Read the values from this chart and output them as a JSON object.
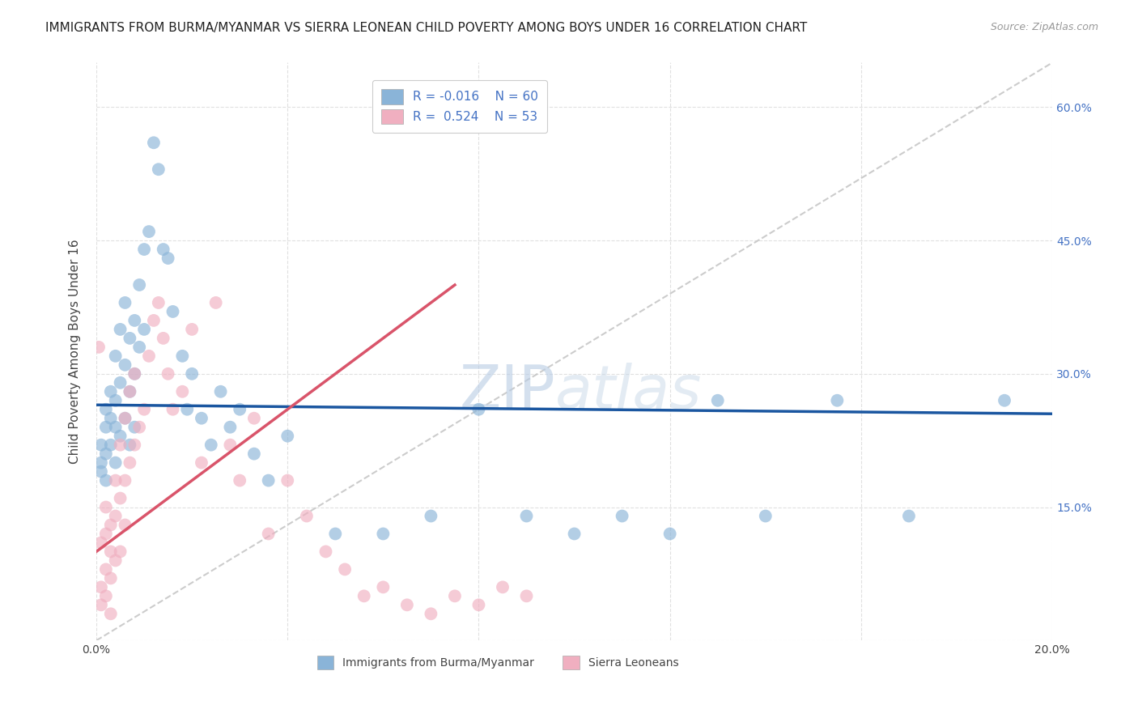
{
  "title": "IMMIGRANTS FROM BURMA/MYANMAR VS SIERRA LEONEAN CHILD POVERTY AMONG BOYS UNDER 16 CORRELATION CHART",
  "source": "Source: ZipAtlas.com",
  "ylabel": "Child Poverty Among Boys Under 16",
  "x_min": 0.0,
  "x_max": 0.2,
  "y_min": 0.0,
  "y_max": 0.65,
  "x_ticks": [
    0.0,
    0.04,
    0.08,
    0.12,
    0.16,
    0.2
  ],
  "y_ticks": [
    0.0,
    0.15,
    0.3,
    0.45,
    0.6
  ],
  "y_tick_labels_right": [
    "",
    "15.0%",
    "30.0%",
    "45.0%",
    "60.0%"
  ],
  "watermark_zip": "ZIP",
  "watermark_atlas": "atlas",
  "legend_label1": "Immigrants from Burma/Myanmar",
  "legend_label2": "Sierra Leoneans",
  "color_blue": "#8ab4d8",
  "color_blue_line": "#1a56a0",
  "color_pink": "#f0afc0",
  "color_pink_line": "#d9546a",
  "color_diag": "#c0c0c0",
  "blue_x": [
    0.001,
    0.001,
    0.001,
    0.002,
    0.002,
    0.002,
    0.002,
    0.003,
    0.003,
    0.003,
    0.004,
    0.004,
    0.004,
    0.004,
    0.005,
    0.005,
    0.005,
    0.006,
    0.006,
    0.006,
    0.007,
    0.007,
    0.007,
    0.008,
    0.008,
    0.008,
    0.009,
    0.009,
    0.01,
    0.01,
    0.011,
    0.012,
    0.013,
    0.014,
    0.015,
    0.016,
    0.018,
    0.019,
    0.02,
    0.022,
    0.024,
    0.026,
    0.028,
    0.03,
    0.033,
    0.036,
    0.04,
    0.05,
    0.06,
    0.07,
    0.08,
    0.09,
    0.1,
    0.11,
    0.12,
    0.13,
    0.14,
    0.155,
    0.17,
    0.19
  ],
  "blue_y": [
    0.22,
    0.2,
    0.19,
    0.26,
    0.24,
    0.21,
    0.18,
    0.28,
    0.25,
    0.22,
    0.32,
    0.27,
    0.24,
    0.2,
    0.35,
    0.29,
    0.23,
    0.38,
    0.31,
    0.25,
    0.34,
    0.28,
    0.22,
    0.36,
    0.3,
    0.24,
    0.4,
    0.33,
    0.44,
    0.35,
    0.46,
    0.56,
    0.53,
    0.44,
    0.43,
    0.37,
    0.32,
    0.26,
    0.3,
    0.25,
    0.22,
    0.28,
    0.24,
    0.26,
    0.21,
    0.18,
    0.23,
    0.12,
    0.12,
    0.14,
    0.26,
    0.14,
    0.12,
    0.14,
    0.12,
    0.27,
    0.14,
    0.27,
    0.14,
    0.27
  ],
  "pink_x": [
    0.0005,
    0.001,
    0.001,
    0.001,
    0.002,
    0.002,
    0.002,
    0.002,
    0.003,
    0.003,
    0.003,
    0.003,
    0.004,
    0.004,
    0.004,
    0.005,
    0.005,
    0.005,
    0.006,
    0.006,
    0.006,
    0.007,
    0.007,
    0.008,
    0.008,
    0.009,
    0.01,
    0.011,
    0.012,
    0.013,
    0.014,
    0.015,
    0.016,
    0.018,
    0.02,
    0.022,
    0.025,
    0.028,
    0.03,
    0.033,
    0.036,
    0.04,
    0.044,
    0.048,
    0.052,
    0.056,
    0.06,
    0.065,
    0.07,
    0.075,
    0.08,
    0.085,
    0.09
  ],
  "pink_y": [
    0.33,
    0.06,
    0.11,
    0.04,
    0.08,
    0.05,
    0.12,
    0.15,
    0.1,
    0.07,
    0.13,
    0.03,
    0.18,
    0.09,
    0.14,
    0.22,
    0.16,
    0.1,
    0.25,
    0.18,
    0.13,
    0.28,
    0.2,
    0.3,
    0.22,
    0.24,
    0.26,
    0.32,
    0.36,
    0.38,
    0.34,
    0.3,
    0.26,
    0.28,
    0.35,
    0.2,
    0.38,
    0.22,
    0.18,
    0.25,
    0.12,
    0.18,
    0.14,
    0.1,
    0.08,
    0.05,
    0.06,
    0.04,
    0.03,
    0.05,
    0.04,
    0.06,
    0.05
  ],
  "background_color": "#ffffff",
  "grid_color": "#dddddd"
}
